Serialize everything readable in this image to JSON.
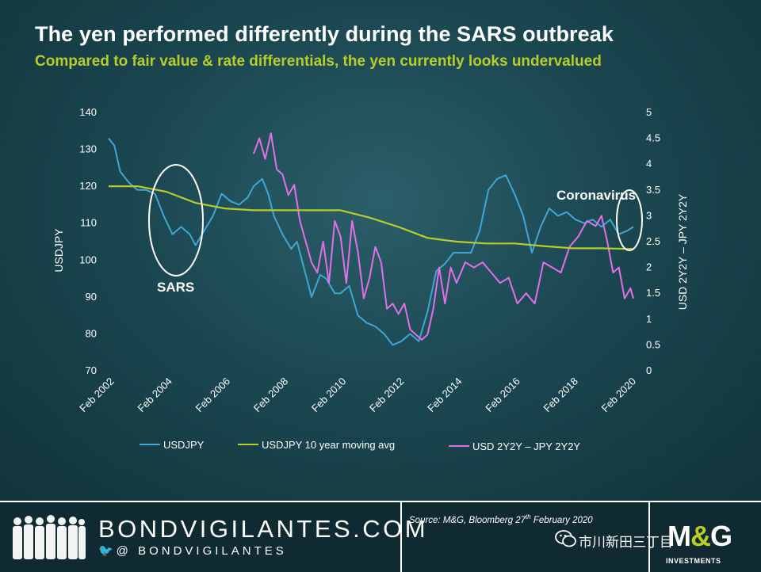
{
  "header": {
    "title": "The yen performed differently during the SARS outbreak",
    "subtitle": "Compared to fair value & rate differentials, the yen currently looks undervalued"
  },
  "colors": {
    "usdjpy": "#3fa6d6",
    "moving_avg": "#b8cc2a",
    "spread": "#e36fe8",
    "accent": "#b8cc2a"
  },
  "chart_data": {
    "type": "line",
    "xlabel": "",
    "ylabel": "USDJPY",
    "y2label": "USD 2Y2Y – JPY 2Y2Y",
    "ylim": [
      70,
      140
    ],
    "y2lim": [
      0,
      5
    ],
    "x_ticks": [
      "Feb 2002",
      "Feb 2004",
      "Feb 2006",
      "Feb 2008",
      "Feb 2010",
      "Feb 2012",
      "Feb 2014",
      "Feb 2016",
      "Feb 2018",
      "Feb 2020"
    ],
    "y_ticks": [
      "140",
      "130",
      "120",
      "110",
      "100",
      "90",
      "80",
      "70"
    ],
    "y2_ticks": [
      "5",
      "4.5",
      "4",
      "3.5",
      "3",
      "2.5",
      "2",
      "1.5",
      "1",
      "0.5",
      "0"
    ],
    "legend_position": "bottom",
    "annotations": [
      "SARS",
      "Coronavirus"
    ],
    "series": [
      {
        "name": "USDJPY",
        "axis": "left",
        "x": [
          2002.0,
          2002.2,
          2002.4,
          2002.7,
          2003.0,
          2003.3,
          2003.6,
          2003.9,
          2004.2,
          2004.5,
          2004.8,
          2005.0,
          2005.3,
          2005.6,
          2005.9,
          2006.2,
          2006.5,
          2006.8,
          2007.0,
          2007.3,
          2007.5,
          2007.7,
          2008.0,
          2008.3,
          2008.5,
          2008.8,
          2009.0,
          2009.3,
          2009.5,
          2009.8,
          2010.0,
          2010.3,
          2010.6,
          2010.9,
          2011.2,
          2011.5,
          2011.8,
          2012.1,
          2012.4,
          2012.7,
          2013.0,
          2013.3,
          2013.6,
          2013.9,
          2014.2,
          2014.5,
          2014.8,
          2015.1,
          2015.4,
          2015.7,
          2016.0,
          2016.3,
          2016.6,
          2016.9,
          2017.2,
          2017.5,
          2017.8,
          2018.1,
          2018.4,
          2018.7,
          2019.0,
          2019.3,
          2019.6,
          2019.9,
          2020.1
        ],
        "values": [
          133,
          131,
          124,
          121,
          119,
          119,
          118,
          112,
          107,
          109,
          107,
          104,
          108,
          112,
          118,
          116,
          115,
          117,
          120,
          122,
          118,
          112,
          107,
          103,
          105,
          96,
          90,
          96,
          95,
          91,
          91,
          93,
          85,
          83,
          82,
          80,
          77,
          78,
          80,
          78,
          86,
          97,
          99,
          102,
          102,
          102,
          108,
          119,
          122,
          123,
          118,
          112,
          102,
          109,
          114,
          112,
          113,
          111,
          110,
          111,
          109,
          111,
          107,
          108,
          109
        ]
      },
      {
        "name": "USDJPY 10 year moving avg",
        "axis": "left",
        "x": [
          2002.0,
          2003.0,
          2004.0,
          2005.0,
          2006.0,
          2007.0,
          2008.0,
          2009.0,
          2010.0,
          2011.0,
          2012.0,
          2013.0,
          2014.0,
          2015.0,
          2016.0,
          2017.0,
          2018.0,
          2019.0,
          2020.1
        ],
        "values": [
          120,
          120,
          118.5,
          115.5,
          114,
          113.5,
          113.5,
          113.5,
          113.5,
          111.5,
          109,
          106,
          105,
          104.5,
          104.5,
          103.8,
          103.2,
          103.2,
          103
        ]
      },
      {
        "name": "USD 2Y2Y  – JPY 2Y2Y",
        "axis": "right",
        "x": [
          2007.0,
          2007.2,
          2007.4,
          2007.6,
          2007.8,
          2008.0,
          2008.2,
          2008.4,
          2008.6,
          2008.8,
          2009.0,
          2009.2,
          2009.4,
          2009.6,
          2009.8,
          2010.0,
          2010.2,
          2010.4,
          2010.6,
          2010.8,
          2011.0,
          2011.2,
          2011.4,
          2011.6,
          2011.8,
          2012.0,
          2012.2,
          2012.4,
          2012.6,
          2012.8,
          2013.0,
          2013.2,
          2013.4,
          2013.6,
          2013.8,
          2014.0,
          2014.3,
          2014.6,
          2014.9,
          2015.2,
          2015.5,
          2015.8,
          2016.1,
          2016.4,
          2016.7,
          2017.0,
          2017.3,
          2017.6,
          2017.9,
          2018.2,
          2018.5,
          2018.8,
          2019.0,
          2019.2,
          2019.4,
          2019.6,
          2019.8,
          2020.0,
          2020.1
        ],
        "values": [
          4.2,
          4.5,
          4.1,
          4.6,
          3.9,
          3.8,
          3.4,
          3.6,
          2.9,
          2.5,
          2.1,
          1.9,
          2.5,
          1.7,
          2.9,
          2.6,
          1.7,
          2.9,
          2.3,
          1.4,
          1.8,
          2.4,
          2.1,
          1.2,
          1.3,
          1.1,
          1.3,
          0.8,
          0.7,
          0.6,
          0.7,
          1.2,
          2.0,
          1.3,
          2.0,
          1.7,
          2.1,
          2.0,
          2.1,
          1.9,
          1.7,
          1.8,
          1.3,
          1.5,
          1.3,
          2.1,
          2.0,
          1.9,
          2.4,
          2.6,
          2.9,
          2.8,
          3.0,
          2.5,
          1.9,
          2.0,
          1.4,
          1.6,
          1.4
        ]
      }
    ]
  },
  "footer": {
    "brand": "BONDVIGILANTES.COM",
    "handle": "🐦@ BONDVIGILANTES",
    "source_main": "Source: M&G, Bloomberg 27",
    "source_sup": "th",
    "source_end": " February 2020",
    "wechat": "市川新田三丁目",
    "logo_m": "M",
    "logo_amp": "&",
    "logo_g": "G",
    "logo_sub": "INVESTMENTS"
  }
}
